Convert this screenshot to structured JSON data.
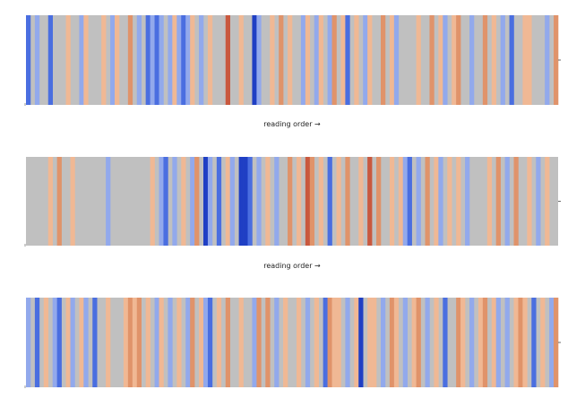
{
  "chart_data": [
    {
      "type": "heatmap",
      "title": "",
      "xlabel": "reading order →",
      "ylabel": "",
      "colormap": "coolwarm",
      "background_color": "#c0c0c0",
      "palette": {
        "-3": "#1f3fc4",
        "-2": "#4a6ee0",
        "-1": "#92a9ec",
        "1": "#f0b894",
        "2": "#e0936a",
        "3": "#c9583e"
      },
      "cells": [
        -2,
        0,
        -1,
        0,
        0,
        -2,
        0,
        0,
        0,
        1,
        0,
        0,
        -1,
        1,
        0,
        0,
        0,
        1,
        0,
        -1,
        1,
        0,
        0,
        2,
        0,
        -1,
        0,
        -2,
        -1,
        -2,
        -1,
        0,
        -1,
        1,
        -1,
        -2,
        -1,
        1,
        0,
        -1,
        0,
        1,
        0,
        0,
        0,
        3,
        0,
        0,
        1,
        0,
        0,
        -3,
        -1,
        0,
        0,
        1,
        0,
        2,
        0,
        1,
        0,
        0,
        -1,
        1,
        0,
        -1,
        1,
        0,
        -1,
        2,
        0,
        1,
        -2,
        0,
        1,
        0,
        -1,
        1,
        0,
        0,
        2,
        0,
        1,
        -1,
        0,
        0,
        0,
        0,
        1,
        0,
        0,
        2,
        0,
        1,
        -1,
        0,
        1,
        2,
        0,
        0,
        -1,
        0,
        0,
        2,
        0,
        1,
        0,
        -1,
        0,
        -2,
        0,
        0,
        1,
        1,
        0,
        0,
        0,
        -1,
        0,
        2
      ]
    },
    {
      "type": "heatmap",
      "title": "",
      "xlabel": "reading order →",
      "ylabel": "",
      "colormap": "coolwarm",
      "background_color": "#c0c0c0",
      "palette": {
        "-3": "#1f3fc4",
        "-2": "#4a6ee0",
        "-1": "#92a9ec",
        "1": "#f0b894",
        "2": "#e0936a",
        "3": "#c9583e"
      },
      "cells": [
        0,
        0,
        0,
        0,
        0,
        1,
        0,
        2,
        0,
        0,
        1,
        0,
        0,
        0,
        0,
        0,
        0,
        0,
        -1,
        0,
        0,
        0,
        0,
        0,
        0,
        0,
        0,
        0,
        1,
        0,
        -1,
        -2,
        0,
        -1,
        0,
        1,
        0,
        -1,
        2,
        0,
        -3,
        -1,
        0,
        -2,
        0,
        1,
        -1,
        0,
        -3,
        -3,
        -2,
        0,
        -1,
        0,
        1,
        0,
        -1,
        0,
        0,
        2,
        0,
        1,
        0,
        3,
        2,
        0,
        1,
        0,
        -2,
        0,
        1,
        0,
        2,
        0,
        0,
        1,
        0,
        3,
        0,
        2,
        0,
        0,
        1,
        0,
        1,
        -1,
        -2,
        0,
        -1,
        0,
        2,
        0,
        1,
        -1,
        0,
        1,
        0,
        1,
        0,
        -1,
        0,
        0,
        0,
        0,
        1,
        0,
        2,
        0,
        -1,
        0,
        2,
        0,
        0,
        1,
        0,
        -1,
        0,
        1,
        0,
        0
      ]
    },
    {
      "type": "heatmap",
      "title": "",
      "xlabel": "",
      "ylabel": "",
      "colormap": "coolwarm",
      "background_color": "#c0c0c0",
      "palette": {
        "-3": "#1f3fc4",
        "-2": "#4a6ee0",
        "-1": "#92a9ec",
        "1": "#f0b894",
        "2": "#e0936a",
        "3": "#c9583e"
      },
      "cells": [
        -1,
        0,
        -2,
        0,
        1,
        0,
        -1,
        -2,
        0,
        1,
        -1,
        0,
        1,
        -1,
        0,
        -2,
        0,
        0,
        1,
        0,
        0,
        0,
        1,
        2,
        1,
        2,
        0,
        1,
        0,
        -1,
        1,
        0,
        -1,
        0,
        1,
        0,
        -1,
        2,
        0,
        1,
        -1,
        -2,
        0,
        1,
        0,
        2,
        0,
        0,
        1,
        0,
        0,
        -1,
        2,
        0,
        2,
        0,
        -1,
        0,
        1,
        0,
        0,
        1,
        0,
        -1,
        0,
        1,
        0,
        -2,
        2,
        1,
        1,
        0,
        -1,
        0,
        1,
        -3,
        0,
        1,
        1,
        0,
        -1,
        0,
        2,
        1,
        0,
        -1,
        0,
        1,
        2,
        0,
        -1,
        0,
        1,
        0,
        -2,
        0,
        0,
        2,
        1,
        0,
        -1,
        0,
        1,
        2,
        0,
        1,
        -1,
        0,
        -1,
        0,
        1,
        2,
        1,
        0,
        -2,
        0,
        1,
        0,
        -1,
        2
      ]
    }
  ]
}
